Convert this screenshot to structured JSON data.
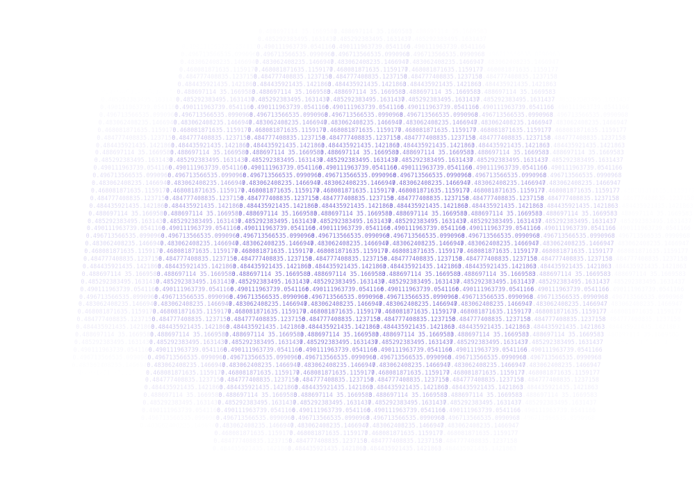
{
  "background_color": "#ffffff",
  "text_color": "#6a5acd",
  "numbers": [
    "0.488697114 35.1669583",
    "0.485292383495.1631437",
    "0.490111963739.0541166",
    "0.496713566535.0990968",
    "0.483062408235.1466947",
    "0.468081871635.1159177",
    "0.484777408835.1237158",
    "0.484435921435.1421863"
  ]
}
